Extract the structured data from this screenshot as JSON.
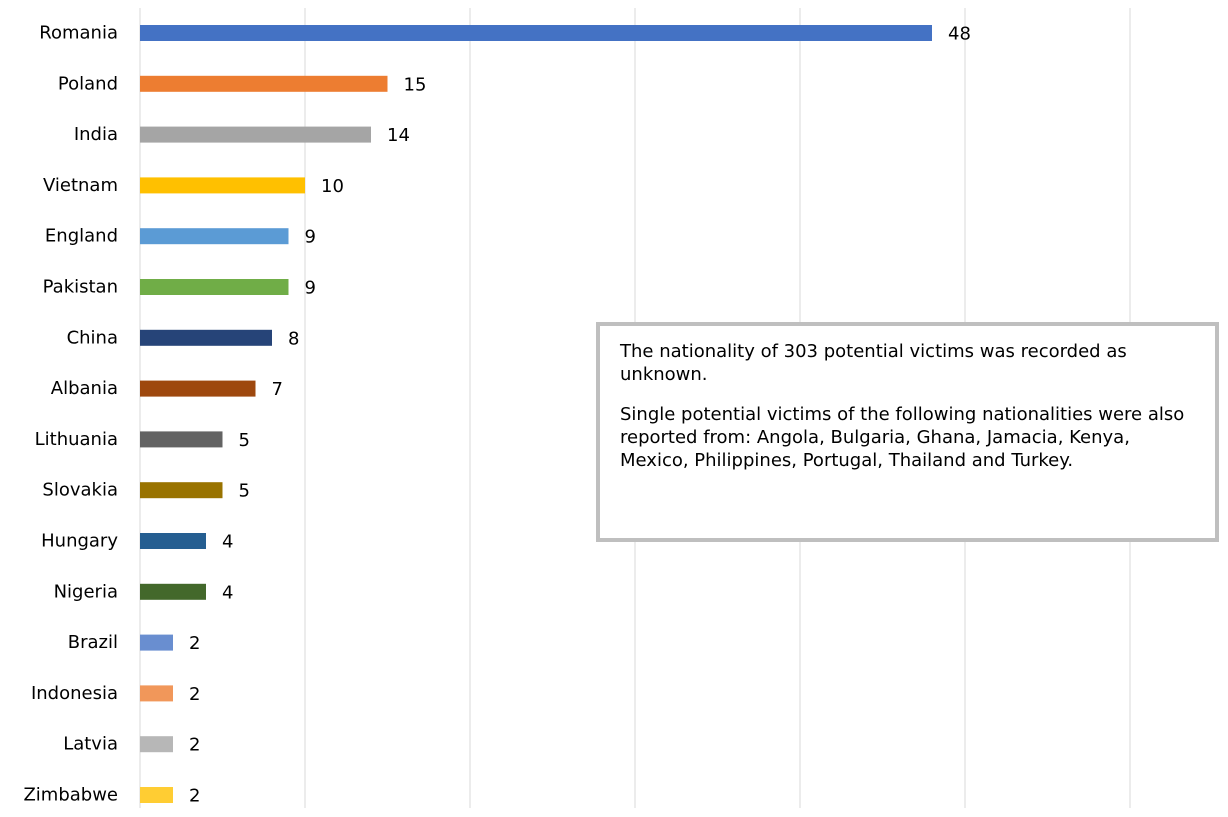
{
  "chart_data": {
    "type": "bar",
    "orientation": "horizontal",
    "categories": [
      "Romania",
      "Poland",
      "India",
      "Vietnam",
      "England",
      "Pakistan",
      "China",
      "Albania",
      "Lithuania",
      "Slovakia",
      "Hungary",
      "Nigeria",
      "Brazil",
      "Indonesia",
      "Latvia",
      "Zimbabwe"
    ],
    "values": [
      48,
      15,
      14,
      10,
      9,
      9,
      8,
      7,
      5,
      5,
      4,
      4,
      2,
      2,
      2,
      2
    ],
    "colors": [
      "#4472c4",
      "#ed7d31",
      "#a5a5a5",
      "#ffc000",
      "#5b9bd5",
      "#70ad47",
      "#264478",
      "#9e480e",
      "#636363",
      "#997300",
      "#255e91",
      "#43682b",
      "#698ed0",
      "#f1975a",
      "#b7b7b7",
      "#ffcd33"
    ],
    "xlim": [
      0,
      65
    ],
    "x_gridlines": [
      0,
      10,
      20,
      30,
      40,
      50,
      60
    ],
    "grid": true,
    "data_labels": true,
    "title": "",
    "xlabel": "",
    "ylabel": ""
  },
  "note": {
    "line1": "The nationality of 303 potential victims was recorded as unknown.",
    "line2": "Single potential victims of the following nationalities were also reported from: Angola, Bulgaria, Ghana, Jamacia, Kenya, Mexico, Philippines, Portugal, Thailand and Turkey."
  },
  "colors": {
    "gridline": "#d9d9d9",
    "note_border": "#bfbfbf"
  }
}
